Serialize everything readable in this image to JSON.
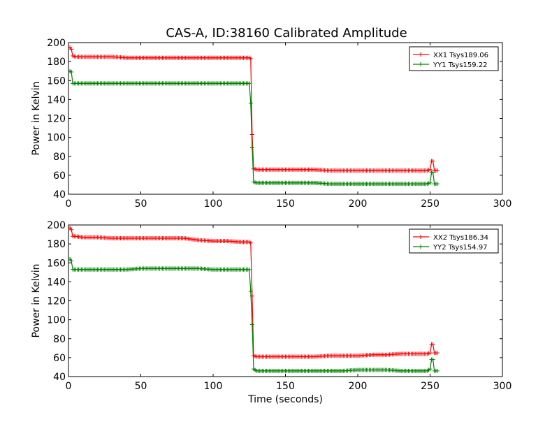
{
  "figure": {
    "title": "CAS-A, ID:38160 Calibrated Amplitude",
    "background": "#ffffff"
  },
  "chart_data": [
    {
      "type": "line",
      "title": "CAS-A, ID:38160 Calibrated Amplitude",
      "xlabel": "",
      "ylabel": "Power in Kelvin",
      "xlim": [
        0,
        300
      ],
      "ylim": [
        40,
        200
      ],
      "xticks": [
        "0",
        "50",
        "100",
        "150",
        "200",
        "250",
        "300"
      ],
      "yticks": [
        "40",
        "60",
        "80",
        "100",
        "120",
        "140",
        "160",
        "180",
        "200"
      ],
      "xtick_values": [
        0,
        50,
        100,
        150,
        200,
        250,
        300
      ],
      "ytick_values": [
        40,
        60,
        80,
        100,
        120,
        140,
        160,
        180,
        200
      ],
      "grid": false,
      "legend_position": "top-right",
      "marker": "+",
      "series": [
        {
          "name": "XX1 Tsys189.06",
          "color": "#ff0000",
          "x": [
            1,
            2,
            3,
            5,
            10,
            20,
            30,
            40,
            50,
            60,
            70,
            80,
            90,
            100,
            110,
            120,
            125,
            126,
            127,
            128,
            130,
            140,
            150,
            160,
            170,
            180,
            190,
            200,
            210,
            220,
            230,
            240,
            248,
            250,
            251,
            252,
            253,
            255
          ],
          "y": [
            195,
            193,
            186,
            185,
            185,
            185,
            185,
            184,
            184,
            184,
            184,
            184,
            184,
            184,
            184,
            184,
            184,
            183,
            103,
            67,
            66,
            66,
            66,
            66,
            66,
            65,
            65,
            65,
            65,
            65,
            65,
            65,
            65,
            66,
            75,
            75,
            65,
            65
          ]
        },
        {
          "name": "YY1 Tsys159.22",
          "color": "#008000",
          "x": [
            1,
            2,
            3,
            5,
            10,
            20,
            30,
            40,
            50,
            60,
            70,
            80,
            90,
            100,
            110,
            120,
            125,
            126,
            127,
            128,
            130,
            140,
            150,
            160,
            170,
            180,
            190,
            200,
            210,
            220,
            230,
            240,
            248,
            250,
            251,
            252,
            253,
            255
          ],
          "y": [
            170,
            169,
            157,
            157,
            157,
            157,
            157,
            157,
            157,
            157,
            157,
            157,
            157,
            157,
            157,
            157,
            157,
            136,
            89,
            53,
            52,
            52,
            52,
            52,
            52,
            51,
            51,
            51,
            51,
            51,
            51,
            51,
            51,
            52,
            63,
            63,
            51,
            51
          ]
        }
      ]
    },
    {
      "type": "line",
      "title": "",
      "xlabel": "Time (seconds)",
      "ylabel": "Power in Kelvin",
      "xlim": [
        0,
        300
      ],
      "ylim": [
        40,
        200
      ],
      "xticks": [
        "0",
        "50",
        "100",
        "150",
        "200",
        "250",
        "300"
      ],
      "yticks": [
        "40",
        "60",
        "80",
        "100",
        "120",
        "140",
        "160",
        "180",
        "200"
      ],
      "xtick_values": [
        0,
        50,
        100,
        150,
        200,
        250,
        300
      ],
      "ytick_values": [
        40,
        60,
        80,
        100,
        120,
        140,
        160,
        180,
        200
      ],
      "grid": false,
      "legend_position": "top-right",
      "marker": "+",
      "series": [
        {
          "name": "XX2 Tsys186.34",
          "color": "#ff0000",
          "x": [
            1,
            2,
            3,
            5,
            10,
            20,
            30,
            40,
            50,
            60,
            70,
            80,
            90,
            100,
            110,
            120,
            125,
            126,
            127,
            128,
            130,
            140,
            150,
            160,
            170,
            180,
            190,
            200,
            210,
            220,
            230,
            240,
            248,
            250,
            251,
            252,
            253,
            255
          ],
          "y": [
            197,
            195,
            188,
            188,
            187,
            187,
            186,
            186,
            186,
            186,
            186,
            186,
            184,
            183,
            183,
            182,
            182,
            181,
            125,
            62,
            61,
            61,
            61,
            61,
            61,
            62,
            62,
            62,
            63,
            63,
            64,
            64,
            64,
            65,
            74,
            74,
            65,
            65
          ]
        },
        {
          "name": "YY2 Tsys154.97",
          "color": "#008000",
          "x": [
            1,
            2,
            3,
            5,
            10,
            20,
            30,
            40,
            50,
            60,
            70,
            80,
            90,
            100,
            110,
            120,
            125,
            126,
            127,
            128,
            130,
            140,
            150,
            160,
            170,
            180,
            190,
            200,
            210,
            220,
            230,
            240,
            248,
            250,
            251,
            252,
            253,
            255
          ],
          "y": [
            164,
            162,
            153,
            153,
            153,
            153,
            153,
            153,
            154,
            154,
            154,
            154,
            154,
            153,
            153,
            153,
            153,
            130,
            95,
            48,
            46,
            46,
            46,
            46,
            46,
            46,
            46,
            47,
            47,
            47,
            46,
            46,
            46,
            48,
            58,
            58,
            46,
            46
          ]
        }
      ]
    }
  ]
}
